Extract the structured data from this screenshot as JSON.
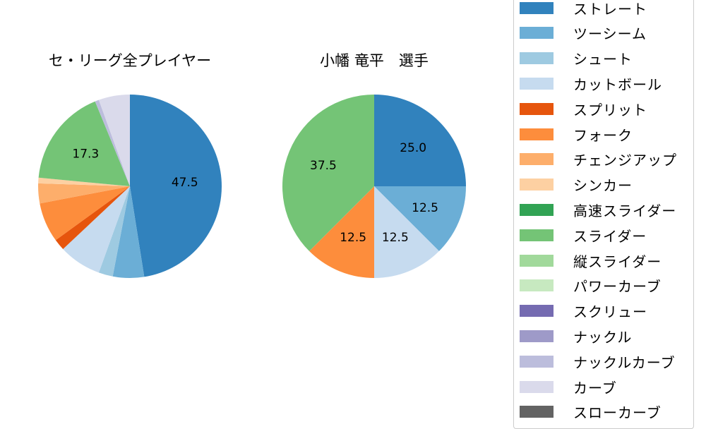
{
  "chart_data": [
    {
      "type": "pie",
      "title": "セ・リーグ全プレイヤー",
      "start_angle": 90,
      "direction": "clockwise",
      "categories": [
        "ストレート",
        "ツーシーム",
        "シュート",
        "カットボール",
        "スプリット",
        "フォーク",
        "チェンジアップ",
        "シンカー",
        "スライダー",
        "ナックルカーブ",
        "カーブ"
      ],
      "values": [
        47.5,
        5.5,
        2.5,
        7.5,
        2.0,
        7.0,
        3.5,
        1.0,
        17.3,
        0.7,
        5.5
      ],
      "data_labels": [
        "47.5",
        "",
        "",
        "",
        "",
        "",
        "",
        "",
        "17.3",
        "",
        ""
      ],
      "colors": [
        "#3182bd",
        "#6baed6",
        "#9ecae1",
        "#c6dbef",
        "#e6550d",
        "#fd8d3c",
        "#fdae6b",
        "#fdd0a2",
        "#74c476",
        "#bcbddc",
        "#dadaeb"
      ]
    },
    {
      "type": "pie",
      "title": "小幡 竜平　選手",
      "start_angle": 90,
      "direction": "clockwise",
      "categories": [
        "ストレート",
        "ツーシーム",
        "カットボール",
        "フォーク",
        "スライダー"
      ],
      "values": [
        25.0,
        12.5,
        12.5,
        12.5,
        37.5
      ],
      "data_labels": [
        "25.0",
        "12.5",
        "12.5",
        "12.5",
        "37.5"
      ],
      "colors": [
        "#3182bd",
        "#6baed6",
        "#c6dbef",
        "#fd8d3c",
        "#74c476"
      ]
    }
  ],
  "titles": {
    "left": "セ・リーグ全プレイヤー",
    "right": "小幡 竜平　選手"
  },
  "legend": {
    "position": "right",
    "items": [
      {
        "label": "ストレート",
        "color": "#3182bd"
      },
      {
        "label": "ツーシーム",
        "color": "#6baed6"
      },
      {
        "label": "シュート",
        "color": "#9ecae1"
      },
      {
        "label": "カットボール",
        "color": "#c6dbef"
      },
      {
        "label": "スプリット",
        "color": "#e6550d"
      },
      {
        "label": "フォーク",
        "color": "#fd8d3c"
      },
      {
        "label": "チェンジアップ",
        "color": "#fdae6b"
      },
      {
        "label": "シンカー",
        "color": "#fdd0a2"
      },
      {
        "label": "高速スライダー",
        "color": "#31a354"
      },
      {
        "label": "スライダー",
        "color": "#74c476"
      },
      {
        "label": "縦スライダー",
        "color": "#a1d99b"
      },
      {
        "label": "パワーカーブ",
        "color": "#c7e9c0"
      },
      {
        "label": "スクリュー",
        "color": "#756bb1"
      },
      {
        "label": "ナックル",
        "color": "#9e9ac8"
      },
      {
        "label": "ナックルカーブ",
        "color": "#bcbddc"
      },
      {
        "label": "カーブ",
        "color": "#dadaeb"
      },
      {
        "label": "スローカーブ",
        "color": "#636363"
      }
    ]
  }
}
